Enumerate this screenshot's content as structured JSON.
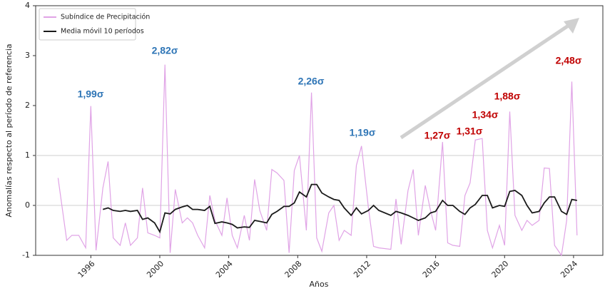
{
  "chart_data": {
    "type": "line",
    "xlabel": "Años",
    "ylabel": "Anomalías respecto al período de referencia",
    "x": [
      1994.1,
      1994.6,
      1994.9,
      1995.3,
      1995.7,
      1996.0,
      1996.3,
      1996.7,
      1997.0,
      1997.3,
      1997.7,
      1998.0,
      1998.3,
      1998.7,
      1999.0,
      1999.3,
      1999.7,
      2000.0,
      2000.3,
      2000.6,
      2000.9,
      2001.3,
      2001.6,
      2001.9,
      2002.2,
      2002.6,
      2002.9,
      2003.2,
      2003.6,
      2003.9,
      2004.2,
      2004.5,
      2004.9,
      2005.2,
      2005.5,
      2005.8,
      2006.2,
      2006.5,
      2006.8,
      2007.2,
      2007.5,
      2007.8,
      2008.1,
      2008.5,
      2008.8,
      2009.1,
      2009.4,
      2009.8,
      2010.1,
      2010.4,
      2010.7,
      2011.1,
      2011.4,
      2011.7,
      2012.1,
      2012.4,
      2012.7,
      2013.4,
      2013.7,
      2014.0,
      2014.4,
      2014.7,
      2015.0,
      2015.4,
      2015.7,
      2016.0,
      2016.4,
      2016.7,
      2017.0,
      2017.4,
      2017.7,
      2018.0,
      2018.3,
      2018.7,
      2019.0,
      2019.3,
      2019.7,
      2020.0,
      2020.3,
      2020.6,
      2021.0,
      2021.3,
      2021.6,
      2022.0,
      2022.3,
      2022.6,
      2022.9,
      2023.3,
      2023.6,
      2023.9,
      2024.2
    ],
    "series": [
      {
        "name": "Subíndice de Precipitación",
        "color": "#e0a3e6",
        "values": [
          0.55,
          -0.7,
          -0.6,
          -0.6,
          -0.85,
          1.99,
          -0.9,
          0.35,
          0.88,
          -0.65,
          -0.8,
          -0.35,
          -0.8,
          -0.65,
          0.35,
          -0.55,
          -0.6,
          -0.65,
          2.82,
          -0.95,
          0.32,
          -0.35,
          -0.25,
          -0.35,
          -0.6,
          -0.85,
          0.2,
          -0.3,
          -0.6,
          0.15,
          -0.6,
          -0.85,
          -0.2,
          -0.7,
          0.52,
          -0.1,
          -0.5,
          0.72,
          0.65,
          0.5,
          -0.95,
          0.7,
          1.0,
          -0.5,
          2.26,
          -0.65,
          -0.92,
          -0.15,
          0.0,
          -0.7,
          -0.5,
          -0.6,
          0.8,
          1.19,
          -0.05,
          -0.82,
          -0.85,
          -0.88,
          0.13,
          -0.78,
          0.3,
          0.72,
          -0.6,
          0.4,
          -0.1,
          -0.5,
          1.27,
          -0.75,
          -0.8,
          -0.82,
          0.2,
          0.45,
          1.31,
          1.34,
          -0.5,
          -0.85,
          -0.4,
          -0.8,
          1.88,
          -0.2,
          -0.5,
          -0.3,
          -0.4,
          -0.3,
          0.75,
          0.74,
          -0.8,
          -1.0,
          -0.3,
          2.48,
          -0.6
        ]
      },
      {
        "name": "Media móvil 10 períodos",
        "color": "#1a1a1a",
        "values": [
          null,
          null,
          null,
          null,
          null,
          null,
          null,
          -0.08,
          -0.05,
          -0.1,
          -0.12,
          -0.1,
          -0.12,
          -0.1,
          -0.28,
          -0.25,
          -0.35,
          -0.53,
          -0.15,
          -0.17,
          -0.08,
          -0.03,
          0.0,
          -0.08,
          -0.08,
          -0.1,
          -0.02,
          -0.36,
          -0.33,
          -0.35,
          -0.38,
          -0.45,
          -0.43,
          -0.44,
          -0.3,
          -0.32,
          -0.35,
          -0.18,
          -0.12,
          -0.02,
          -0.02,
          0.05,
          0.27,
          0.17,
          0.42,
          0.42,
          0.25,
          0.17,
          0.12,
          0.1,
          -0.05,
          -0.2,
          -0.05,
          -0.17,
          -0.1,
          0.0,
          -0.1,
          -0.2,
          -0.12,
          -0.15,
          -0.2,
          -0.25,
          -0.3,
          -0.25,
          -0.15,
          -0.12,
          0.1,
          0.0,
          0.0,
          -0.12,
          -0.18,
          -0.05,
          0.02,
          0.2,
          0.2,
          -0.05,
          0.0,
          -0.02,
          0.28,
          0.3,
          0.2,
          0.0,
          -0.15,
          -0.12,
          0.05,
          0.17,
          0.17,
          -0.12,
          -0.18,
          0.12,
          0.1
        ]
      }
    ],
    "xlim": [
      1992.8,
      2025.7
    ],
    "xticks": [
      1996,
      2000,
      2004,
      2008,
      2012,
      2016,
      2020,
      2024
    ],
    "ylim": [
      -1,
      4
    ],
    "yticks": [
      -1,
      0,
      1,
      2,
      3,
      4
    ],
    "reference_lines": [
      0,
      1
    ],
    "legend": "upper left",
    "annotations": [
      {
        "text": "1,99σ",
        "color": "#2e75b6"
      },
      {
        "text": "2,82σ",
        "color": "#2e75b6"
      },
      {
        "text": "2,26σ",
        "color": "#2e75b6"
      },
      {
        "text": "1,19σ",
        "color": "#2e75b6"
      },
      {
        "text": "1,27σ",
        "color": "#c00000"
      },
      {
        "text": "1,31σ",
        "color": "#c00000"
      },
      {
        "text": "1,34σ",
        "color": "#c00000"
      },
      {
        "text": "1,88σ",
        "color": "#c00000"
      },
      {
        "text": "2,48σ",
        "color": "#c00000"
      }
    ]
  }
}
